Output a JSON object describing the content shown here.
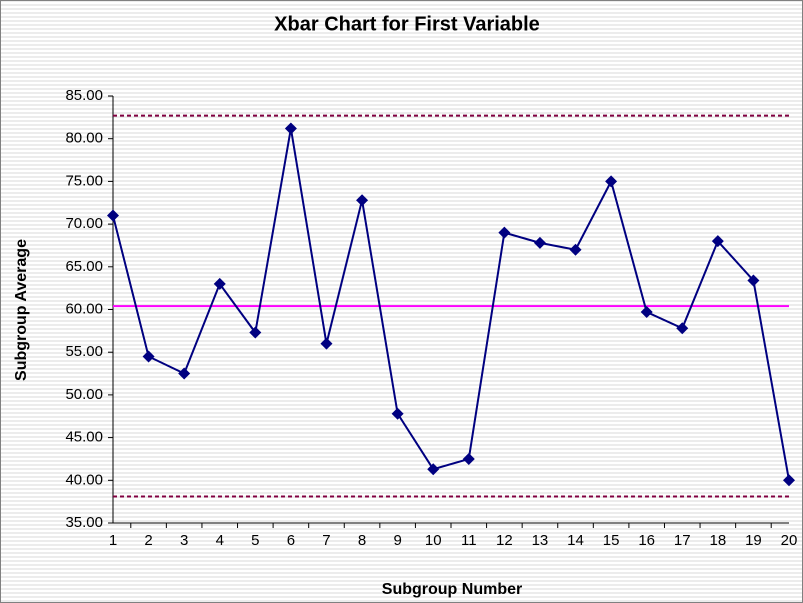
{
  "chart_data": {
    "type": "line",
    "title": "Xbar Chart for First Variable",
    "x_label": "Subgroup Number",
    "y_label": "Subgroup Average",
    "categories": [
      "1",
      "2",
      "3",
      "4",
      "5",
      "6",
      "7",
      "8",
      "9",
      "10",
      "11",
      "12",
      "13",
      "14",
      "15",
      "16",
      "17",
      "18",
      "19",
      "20"
    ],
    "series": [
      {
        "color": "#000080",
        "marker": "diamond",
        "values": [
          71.0,
          54.5,
          52.5,
          63.0,
          57.3,
          81.2,
          56.0,
          72.8,
          47.8,
          41.3,
          42.5,
          69.0,
          67.8,
          67.0,
          75.0,
          59.7,
          57.8,
          68.0,
          63.4,
          40.0
        ]
      }
    ],
    "reference_lines": [
      {
        "value": 82.7,
        "color": "#800040",
        "style": "dashed"
      },
      {
        "value": 60.4,
        "color": "#ff00ff",
        "style": "solid"
      },
      {
        "value": 38.1,
        "color": "#800040",
        "style": "dashed"
      }
    ],
    "ylim": [
      35,
      85
    ],
    "yticks": [
      {
        "value": 35,
        "label": "35.00"
      },
      {
        "value": 40,
        "label": "40.00"
      },
      {
        "value": 45,
        "label": "45.00"
      },
      {
        "value": 50,
        "label": "50.00"
      },
      {
        "value": 55,
        "label": "55.00"
      },
      {
        "value": 60,
        "label": "60.00"
      },
      {
        "value": 65,
        "label": "65.00"
      },
      {
        "value": 70,
        "label": "70.00"
      },
      {
        "value": 75,
        "label": "75.00"
      },
      {
        "value": 80,
        "label": "80.00"
      },
      {
        "value": 85,
        "label": "85.00"
      }
    ],
    "grid": false
  }
}
